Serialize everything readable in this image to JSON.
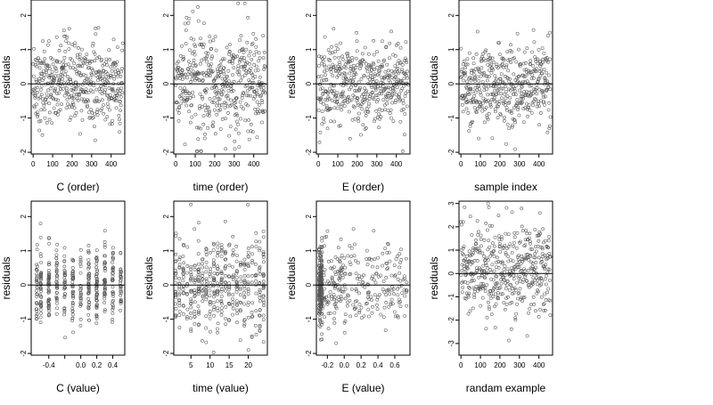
{
  "chart_data": [
    {
      "type": "scatter",
      "xlabel": "C (order)",
      "ylabel": "residuals",
      "xlim": [
        -10,
        470
      ],
      "ylim": [
        -2.05,
        2.45
      ],
      "xticks": [
        0,
        100,
        200,
        300,
        400
      ],
      "xtick_labels": [
        "0",
        "100",
        "200",
        "300",
        "400"
      ],
      "yticks": [
        -2,
        -1,
        0,
        1,
        2
      ],
      "ytick_labels": [
        "-2",
        "-1",
        "0",
        "1",
        "2"
      ],
      "hline": 0
    },
    {
      "type": "scatter",
      "xlabel": "time (order)",
      "ylabel": "residuals",
      "xlim": [
        -10,
        470
      ],
      "ylim": [
        -2.05,
        2.45
      ],
      "xticks": [
        0,
        100,
        200,
        300,
        400
      ],
      "xtick_labels": [
        "0",
        "100",
        "200",
        "300",
        "400"
      ],
      "yticks": [
        -2,
        -1,
        0,
        1,
        2
      ],
      "ytick_labels": [
        "-2",
        "-1",
        "0",
        "1",
        "2"
      ],
      "hline": 0
    },
    {
      "type": "scatter",
      "xlabel": "E (order)",
      "ylabel": "residuals",
      "xlim": [
        -10,
        470
      ],
      "ylim": [
        -2.05,
        2.45
      ],
      "xticks": [
        0,
        100,
        200,
        300,
        400
      ],
      "xtick_labels": [
        "0",
        "100",
        "200",
        "300",
        "400"
      ],
      "yticks": [
        -2,
        -1,
        0,
        1,
        2
      ],
      "ytick_labels": [
        "-2",
        "-1",
        "0",
        "1",
        "2"
      ],
      "hline": 0
    },
    {
      "type": "scatter",
      "xlabel": "sample index",
      "ylabel": "residuals",
      "xlim": [
        -10,
        470
      ],
      "ylim": [
        -2.05,
        2.45
      ],
      "xticks": [
        0,
        100,
        200,
        300,
        400
      ],
      "xtick_labels": [
        "0",
        "100",
        "200",
        "300",
        "400"
      ],
      "yticks": [
        -2,
        -1,
        0,
        1,
        2
      ],
      "ytick_labels": [
        "-2",
        "-1",
        "0",
        "1",
        "2"
      ],
      "hline": 0
    },
    {
      "type": "scatter",
      "xlabel": "C (value)",
      "ylabel": "residuals",
      "xlim": [
        -0.62,
        0.55
      ],
      "ylim": [
        -2.05,
        2.45
      ],
      "xticks": [
        -0.4,
        -0.2,
        0.0,
        0.2,
        0.4
      ],
      "xtick_labels": [
        "-0.4",
        "",
        "0.0",
        "0.2",
        "0.4"
      ],
      "yticks": [
        -2,
        -1,
        0,
        1,
        2
      ],
      "ytick_labels": [
        "-2",
        "-1",
        "0",
        "1",
        "2"
      ],
      "hline": 0
    },
    {
      "type": "scatter",
      "xlabel": "time (value)",
      "ylabel": "residuals",
      "xlim": [
        0.5,
        25
      ],
      "ylim": [
        -2.05,
        2.45
      ],
      "xticks": [
        5,
        10,
        15,
        20
      ],
      "xtick_labels": [
        "5",
        "10",
        "15",
        "20"
      ],
      "yticks": [
        -2,
        -1,
        0,
        1,
        2
      ],
      "ytick_labels": [
        "-2",
        "-1",
        "0",
        "1",
        "2"
      ],
      "hline": 0
    },
    {
      "type": "scatter",
      "xlabel": "E (value)",
      "ylabel": "residuals",
      "xlim": [
        -0.33,
        0.78
      ],
      "ylim": [
        -2.05,
        2.45
      ],
      "xticks": [
        -0.2,
        0.0,
        0.2,
        0.4,
        0.6
      ],
      "xtick_labels": [
        "-0.2",
        "0.0",
        "0.2",
        "0.4",
        "0.6"
      ],
      "yticks": [
        -2,
        -1,
        0,
        1,
        2
      ],
      "ytick_labels": [
        "-2",
        "-1",
        "0",
        "1",
        "2"
      ],
      "hline": 0
    },
    {
      "type": "scatter",
      "xlabel": "randam example",
      "ylabel": "residuals",
      "xlim": [
        -10,
        470
      ],
      "ylim": [
        -3.5,
        3.1
      ],
      "xticks": [
        0,
        100,
        200,
        300,
        400
      ],
      "xtick_labels": [
        "0",
        "100",
        "200",
        "300",
        "400"
      ],
      "yticks": [
        -3,
        -2,
        -1,
        0,
        1,
        2,
        3
      ],
      "ytick_labels": [
        "-3",
        "-2",
        "-1",
        "0",
        "1",
        "2",
        "3"
      ],
      "hline": 0
    }
  ]
}
